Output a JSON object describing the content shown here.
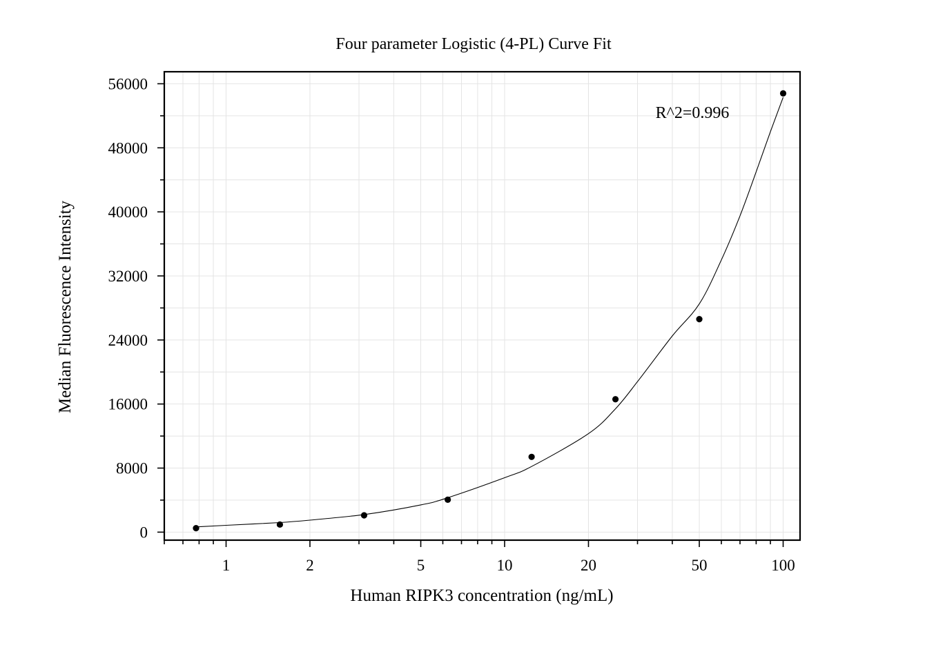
{
  "chart_data": {
    "type": "scatter",
    "title": "Four parameter Logistic (4-PL) Curve Fit",
    "xlabel": "Human RIPK3 concentration (ng/mL)",
    "ylabel": "Median Fluorescence Intensity",
    "x_scale": "log",
    "xlim": [
      0.6,
      115
    ],
    "ylim": [
      -1000,
      57500
    ],
    "x_ticks": [
      1,
      2,
      5,
      10,
      20,
      50,
      100
    ],
    "x_tick_labels": [
      "1",
      "2",
      "5",
      "10",
      "20",
      "50",
      "100"
    ],
    "y_ticks": [
      0,
      8000,
      16000,
      24000,
      32000,
      40000,
      48000,
      56000
    ],
    "y_tick_labels": [
      "0",
      "8000",
      "16000",
      "24000",
      "32000",
      "40000",
      "48000",
      "56000"
    ],
    "grid": true,
    "annotation": "R^2=0.996",
    "series": [
      {
        "type": "scatter",
        "x": [
          0.78,
          1.56,
          3.13,
          6.25,
          12.5,
          25,
          50,
          100
        ],
        "y": [
          500,
          950,
          2100,
          4050,
          9400,
          16600,
          26600,
          54800
        ]
      },
      {
        "type": "line",
        "x": [
          0.78,
          1,
          1.56,
          2,
          3.13,
          5,
          6.25,
          10,
          12.5,
          20,
          25,
          30,
          40,
          50,
          60,
          70,
          80,
          90,
          100
        ],
        "y": [
          650,
          850,
          1200,
          1500,
          2200,
          3400,
          4300,
          6800,
          8200,
          12300,
          15400,
          18800,
          24500,
          28500,
          34000,
          39500,
          45000,
          50000,
          54300
        ]
      }
    ]
  }
}
